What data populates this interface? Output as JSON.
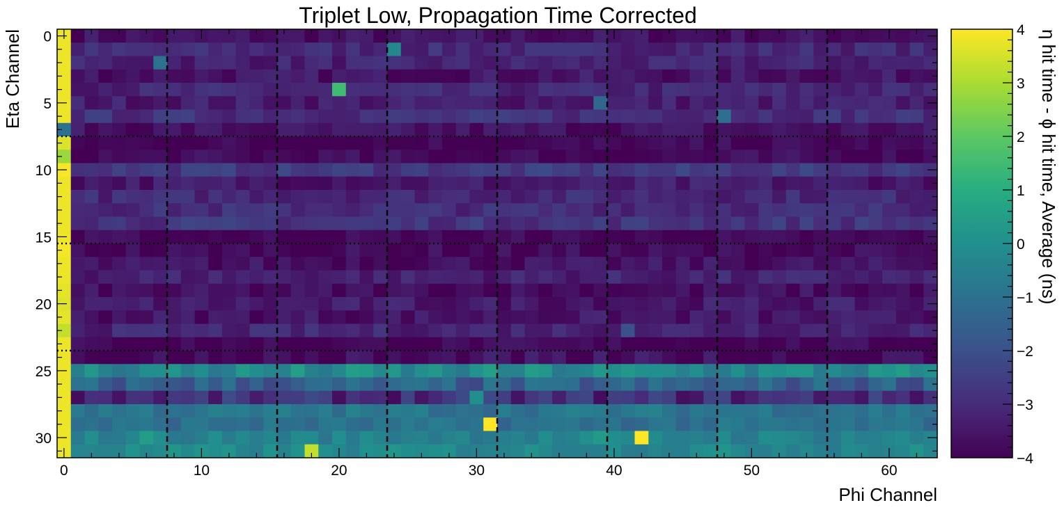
{
  "chart_data": {
    "type": "heatmap",
    "title": "Triplet Low, Propagation Time Corrected",
    "xlabel": "Phi Channel",
    "ylabel": "Eta Channel",
    "colorbar_label": "η hit time - ϕ hit time, Average (ns)",
    "colormap": "viridis",
    "xlim": [
      -0.5,
      63.5
    ],
    "ylim": [
      31.5,
      -0.5
    ],
    "clim": [
      -4,
      4
    ],
    "x_ticks": [
      0,
      10,
      20,
      30,
      40,
      50,
      60
    ],
    "y_ticks": [
      0,
      5,
      10,
      15,
      20,
      25,
      30
    ],
    "colorbar_ticks": [
      "−4",
      "−3",
      "−2",
      "−1",
      "0",
      "1",
      "2",
      "3",
      "4"
    ],
    "colorbar_tick_values": [
      -4,
      -3,
      -2,
      -1,
      0,
      1,
      2,
      3,
      4
    ],
    "vertical_dashed_lines_x": [
      7.5,
      15.5,
      23.5,
      31.5,
      39.5,
      47.5,
      55.5
    ],
    "horizontal_dotted_lines_y": [
      7.5,
      15.5,
      23.5
    ],
    "eta_channels": [
      0,
      1,
      2,
      3,
      4,
      5,
      6,
      7,
      8,
      9,
      10,
      11,
      12,
      13,
      14,
      15,
      16,
      17,
      18,
      19,
      20,
      21,
      22,
      23,
      24,
      25,
      26,
      27,
      28,
      29,
      30,
      31
    ],
    "phi_channels": [
      0,
      1,
      2,
      3,
      4,
      5,
      6,
      7,
      8,
      9,
      10,
      11,
      12,
      13,
      14,
      15,
      16,
      17,
      18,
      19,
      20,
      21,
      22,
      23,
      24,
      25,
      26,
      27,
      28,
      29,
      30,
      31,
      32,
      33,
      34,
      35,
      36,
      37,
      38,
      39,
      40,
      41,
      42,
      43,
      44,
      45,
      46,
      47,
      48,
      49,
      50,
      51,
      52,
      53,
      54,
      55,
      56,
      57,
      58,
      59,
      60,
      61,
      62,
      63
    ],
    "row_average_values": [
      -3.6,
      -3.0,
      -3.2,
      -3.5,
      -3.1,
      -3.3,
      -2.8,
      -3.6,
      -3.9,
      -3.8,
      -2.6,
      -3.4,
      -3.0,
      -2.9,
      -2.7,
      -3.9,
      -3.8,
      -3.6,
      -3.2,
      -3.7,
      -3.4,
      -3.5,
      -3.1,
      -3.9,
      -3.8,
      -0.1,
      -1.4,
      -2.8,
      -0.8,
      -1.0,
      -0.4,
      -0.2
    ],
    "column0_values": [
      3.8,
      3.8,
      3.8,
      3.8,
      3.8,
      3.8,
      3.8,
      -1.0,
      3.6,
      2.8,
      3.9,
      3.8,
      3.8,
      3.8,
      3.8,
      3.8,
      3.9,
      3.8,
      3.8,
      3.7,
      3.6,
      3.7,
      3.3,
      3.8,
      3.8,
      3.8,
      3.8,
      3.8,
      3.8,
      3.8,
      3.8,
      3.8
    ],
    "highlight_cells": [
      {
        "phi": 20,
        "eta": 4,
        "value": 1.5
      },
      {
        "phi": 24,
        "eta": 1,
        "value": -0.3
      },
      {
        "phi": 7,
        "eta": 2,
        "value": -1.0
      },
      {
        "phi": 39,
        "eta": 5,
        "value": -1.3
      },
      {
        "phi": 48,
        "eta": 6,
        "value": -1.1
      },
      {
        "phi": 41,
        "eta": 22,
        "value": -2.0
      },
      {
        "phi": 31,
        "eta": 29,
        "value": 4.0
      },
      {
        "phi": 42,
        "eta": 30,
        "value": 4.0
      },
      {
        "phi": 18,
        "eta": 31,
        "value": 3.3
      },
      {
        "phi": 30,
        "eta": 27,
        "value": 0.0
      },
      {
        "phi": 39,
        "eta": 30,
        "value": 0.3
      },
      {
        "phi": 6,
        "eta": 30,
        "value": 0.4
      }
    ]
  }
}
